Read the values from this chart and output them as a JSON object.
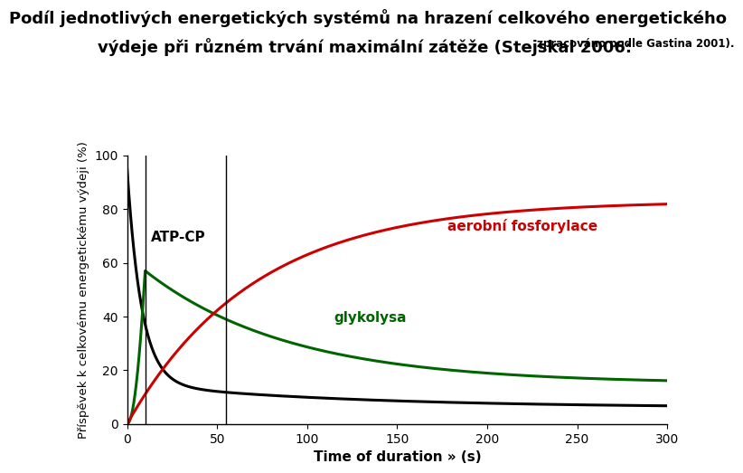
{
  "title_main": "Podíl jednotlivých energetických systémů na hrazení celkového energetického",
  "title_sub_bold": "výdeje při různém trvání maximální zátěže (Stejskal 2006: ",
  "title_sub_small": "zpracováno podle Gastina 2001).",
  "xlabel": "Time of duration » (s)",
  "ylabel": "Příspěvek k celkovému energetickému výdeji (%)",
  "xlim": [
    0,
    300
  ],
  "ylim": [
    0,
    100
  ],
  "xticks": [
    0,
    50,
    100,
    150,
    200,
    250,
    300
  ],
  "yticks": [
    0,
    20,
    40,
    60,
    80,
    100
  ],
  "vline1": 10,
  "vline2": 55,
  "label_atpcp": "ATP-CP",
  "label_glykolysa": "glykolysa",
  "label_aerobni": "aerobní fosforylace",
  "color_atpcp": "#000000",
  "color_glykolysa": "#006400",
  "color_aerobni": "#cc0000",
  "background_color": "#ffffff",
  "title_fontsize": 13,
  "axis_fontsize": 11,
  "label_fontsize": 11
}
